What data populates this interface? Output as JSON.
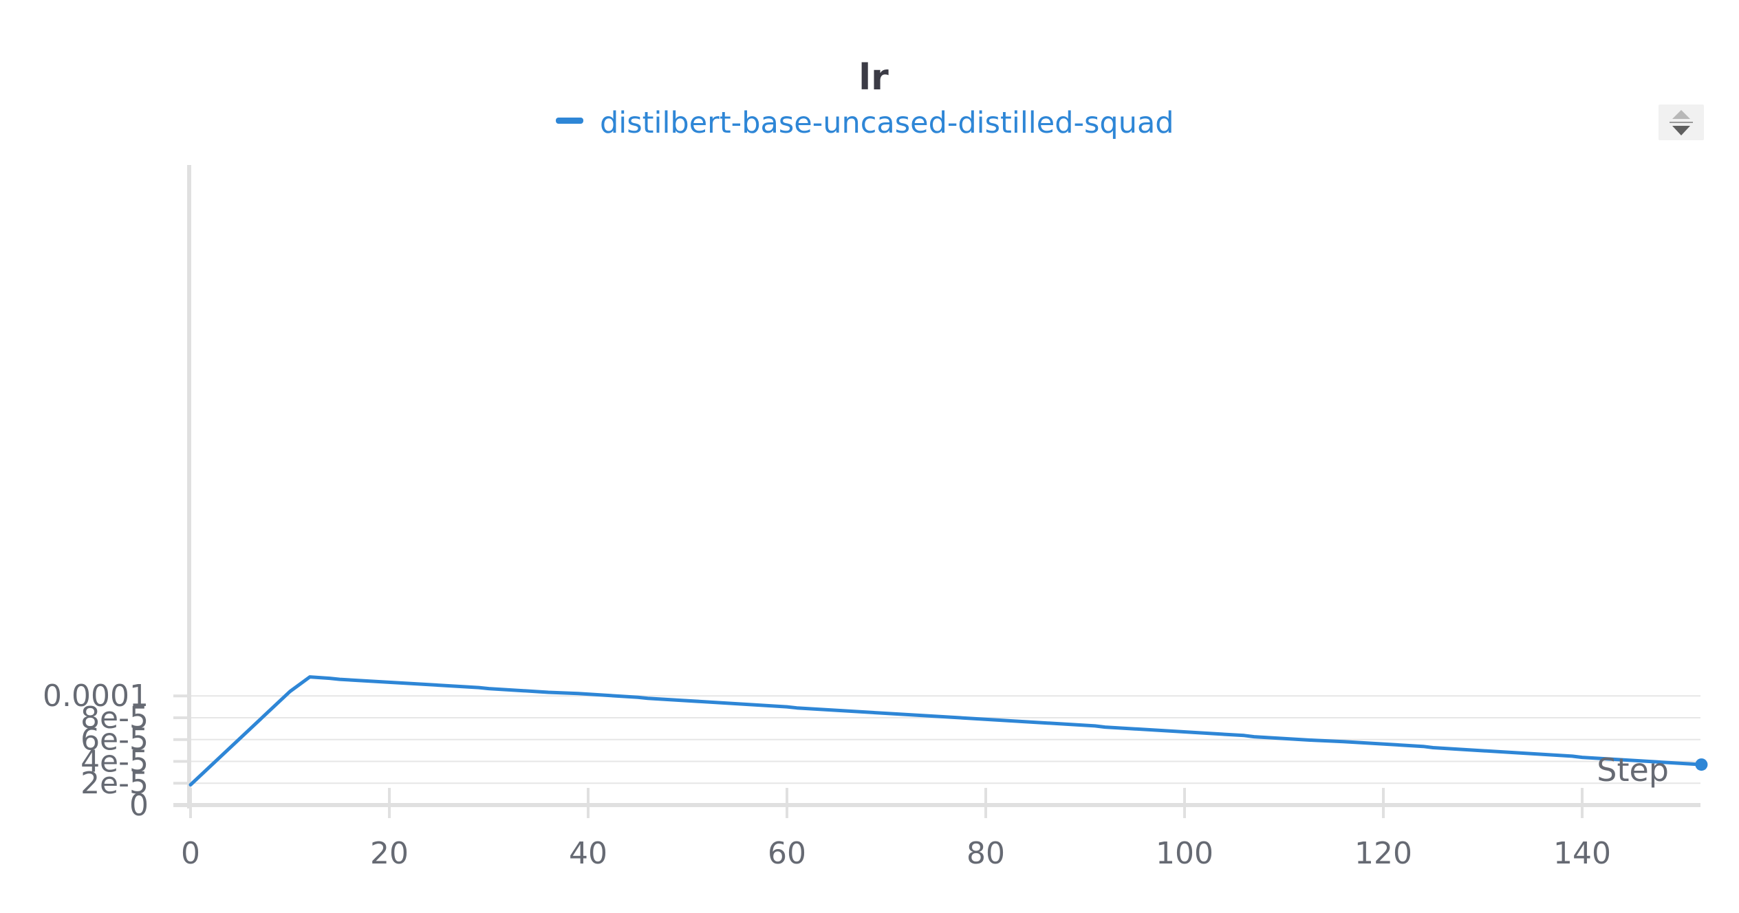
{
  "chart_data": {
    "type": "line",
    "title": "lr",
    "xlabel": "Step",
    "ylabel": "",
    "xlim": [
      0,
      152
    ],
    "ylim": [
      0,
      0.000118
    ],
    "x_ticks": [
      0,
      20,
      40,
      60,
      80,
      100,
      120,
      140
    ],
    "x_tick_labels": [
      "0",
      "20",
      "40",
      "60",
      "80",
      "100",
      "120",
      "140"
    ],
    "y_ticks": [
      0,
      2e-05,
      4e-05,
      6e-05,
      8e-05,
      0.0001
    ],
    "y_tick_labels": [
      "0",
      "2e-5",
      "4e-5",
      "6e-5",
      "8e-5",
      "0.0001"
    ],
    "grid": true,
    "legend_position": "top-center",
    "series": [
      {
        "name": "distilbert-base-uncased-distilled-squad",
        "color": "#2e86d6",
        "end_marker": true,
        "x": [
          0,
          10,
          12,
          14,
          15,
          29,
          30,
          36,
          39,
          45,
          46,
          60,
          61,
          91,
          92,
          106,
          107,
          113,
          116,
          124,
          125,
          139,
          140,
          152
        ],
        "y": [
          1.86e-05,
          0.000104,
          0.0001174,
          0.0001161,
          0.0001152,
          0.0001076,
          0.0001067,
          0.0001033,
          0.0001022,
          9.87e-05,
          9.78e-05,
          9e-05,
          8.9e-05,
          7.25e-05,
          7.14e-05,
          6.37e-05,
          6.26e-05,
          5.93e-05,
          5.81e-05,
          5.37e-05,
          5.26e-05,
          4.48e-05,
          4.37e-05,
          3.71e-05
        ]
      }
    ]
  },
  "controls": {
    "sort_button_icon": "sort-up-down-icon"
  }
}
